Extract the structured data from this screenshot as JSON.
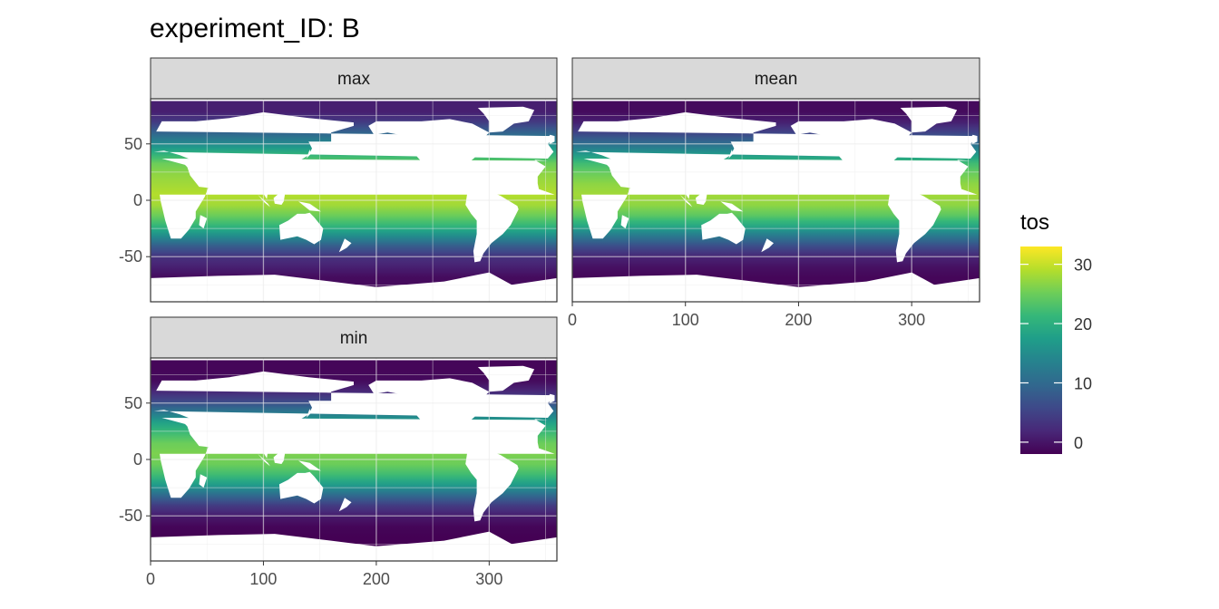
{
  "chart_data": {
    "type": "heatmap",
    "title": "experiment_ID: B",
    "xlabel": "",
    "ylabel": "",
    "xlim": [
      0,
      360
    ],
    "ylim": [
      -90,
      90
    ],
    "x_ticks": [
      0,
      100,
      200,
      300
    ],
    "y_ticks": [
      -50,
      0,
      50
    ],
    "grid": true,
    "facets": [
      "max",
      "mean",
      "min"
    ],
    "legend": {
      "title": "tos",
      "range": [
        -2,
        33
      ],
      "ticks": [
        0,
        10,
        20,
        30
      ],
      "palette": "viridis",
      "placement": "right"
    },
    "latitude_profile": {
      "lat": [
        -80,
        -70,
        -60,
        -50,
        -40,
        -30,
        -20,
        -10,
        0,
        10,
        20,
        30,
        40,
        50,
        60,
        70,
        80
      ],
      "max": [
        -1,
        1,
        3,
        8,
        15,
        21,
        25,
        28,
        29,
        28,
        27,
        25,
        20,
        14,
        9,
        4,
        1
      ],
      "mean": [
        -1.5,
        -0.5,
        1.5,
        6,
        12,
        19,
        24,
        27,
        28,
        27,
        25,
        22,
        16,
        10,
        5,
        1,
        -1
      ],
      "min": [
        -2,
        -1.5,
        0.5,
        4,
        10,
        17,
        22,
        25,
        26,
        25,
        22,
        18,
        12,
        6,
        2,
        -1,
        -1.5
      ]
    }
  },
  "colors": {
    "strip_bg": "#d9d9d9",
    "panel_border": "#333333",
    "grid": "#ebebeb",
    "land": "#ffffff",
    "viridis": [
      "#440154",
      "#482878",
      "#3e4989",
      "#31688e",
      "#26828e",
      "#1f9e89",
      "#35b779",
      "#6ece58",
      "#b5de2b",
      "#fde725"
    ]
  }
}
